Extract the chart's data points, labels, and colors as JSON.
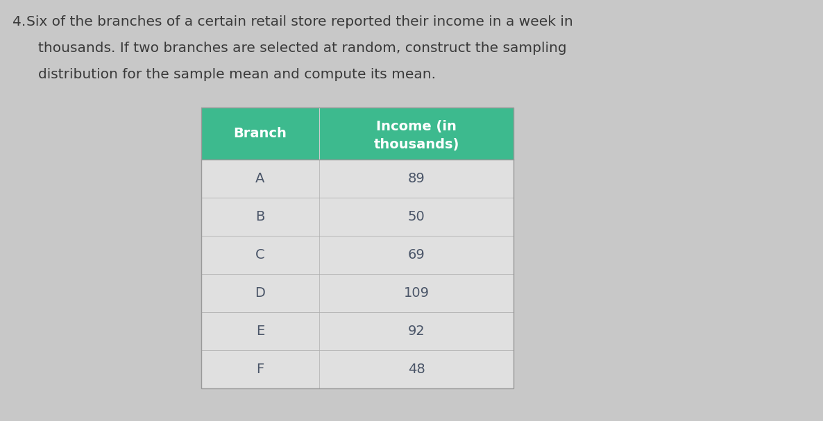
{
  "question_number": "4.",
  "question_text_line1": " Six of the branches of a certain retail store reported their income in a week in",
  "question_text_line2": "   thousands. If two branches are selected at random, construct the sampling",
  "question_text_line3": "   distribution for the sample mean and compute its mean.",
  "col1_header": "Branch",
  "col2_header_line1": "Income (in",
  "col2_header_line2": "thousands)",
  "branches": [
    "A",
    "B",
    "C",
    "D",
    "E",
    "F"
  ],
  "incomes": [
    89,
    50,
    69,
    109,
    92,
    48
  ],
  "header_bg_color": "#3dba8e",
  "header_text_color": "#ffffff",
  "table_text_color": "#4a5568",
  "background_color": "#c8c8c8",
  "question_text_color": "#3a3a3a",
  "table_bg_color": "#e0e0e0"
}
